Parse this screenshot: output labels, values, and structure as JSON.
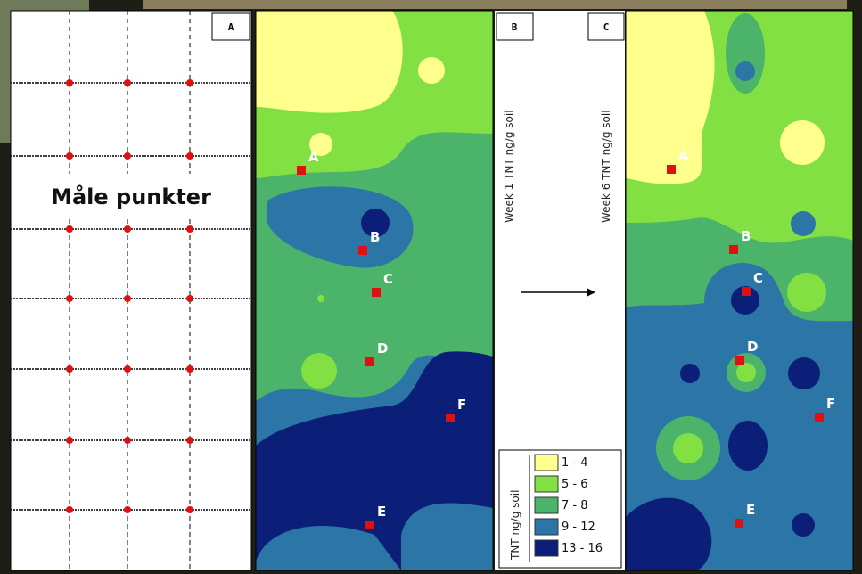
{
  "panel_a": {
    "label": "A",
    "caption": "Måle punkter"
  },
  "panel_b": {
    "label": "B",
    "axis_label": "Week 1 TNT ng/g soil",
    "points": [
      "A",
      "B",
      "C",
      "D",
      "F",
      "E"
    ]
  },
  "panel_c": {
    "label": "C",
    "axis_label": "Week 6 TNT ng/g soil",
    "points": [
      "A",
      "B",
      "C",
      "D",
      "F",
      "E"
    ]
  },
  "legend": {
    "title": "TNT ng/g soil",
    "items": [
      "1 - 4",
      "5 - 6",
      "7 - 8",
      "9 - 12",
      "13 - 16"
    ]
  }
}
